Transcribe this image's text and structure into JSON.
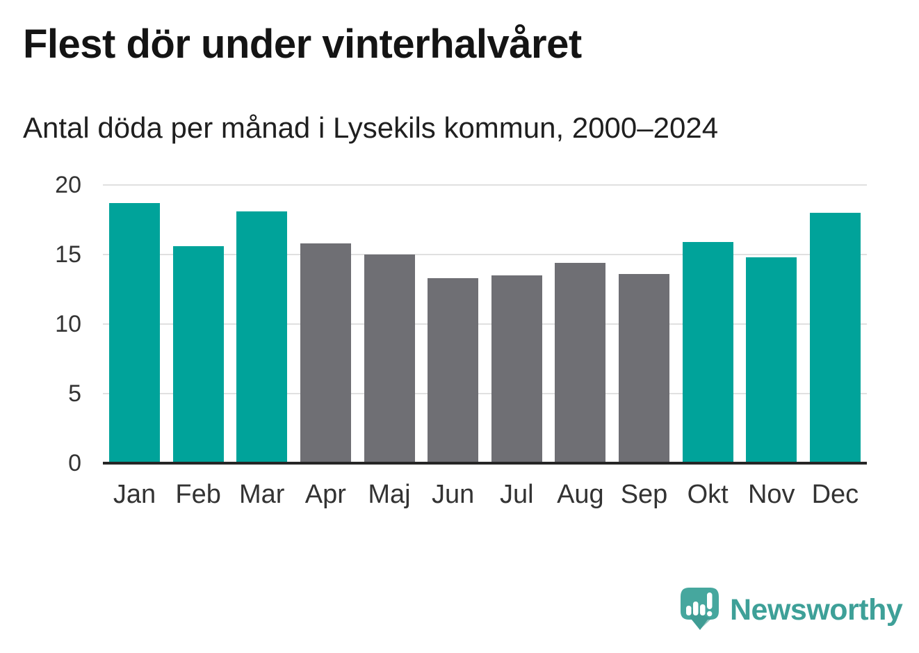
{
  "header": {
    "title": "Flest dör under vinterhalvåret",
    "subtitle": "Antal döda per månad i Lysekils kommun, 2000–2024"
  },
  "chart_data": {
    "type": "bar",
    "title": "Flest dör under vinterhalvåret",
    "subtitle": "Antal döda per månad i Lysekils kommun, 2000–2024",
    "categories": [
      "Jan",
      "Feb",
      "Mar",
      "Apr",
      "Maj",
      "Jun",
      "Jul",
      "Aug",
      "Sep",
      "Okt",
      "Nov",
      "Dec"
    ],
    "values": [
      18.7,
      15.6,
      18.1,
      15.8,
      15.0,
      13.3,
      13.5,
      14.4,
      13.6,
      15.9,
      14.8,
      18.0
    ],
    "bar_groups": [
      "winter",
      "winter",
      "winter",
      "summer",
      "summer",
      "summer",
      "summer",
      "summer",
      "summer",
      "winter",
      "winter",
      "winter"
    ],
    "colors": {
      "winter": "#00a39a",
      "summer": "#6f6f74"
    },
    "xlabel": "",
    "ylabel": "",
    "ylim": [
      0,
      20
    ],
    "yticks": [
      0,
      5,
      10,
      15,
      20
    ],
    "grid": true,
    "legend": false,
    "grid_color": "#e0e0e0",
    "axis_color": "#262626",
    "tick_label_color": "#333333"
  },
  "branding": {
    "logo_text": "Newsworthy",
    "logo_icon": "newsworthy-speech-bubble-chart-icon",
    "logo_text_color": "#3ea098",
    "logo_mark_color": "#46a79e"
  }
}
